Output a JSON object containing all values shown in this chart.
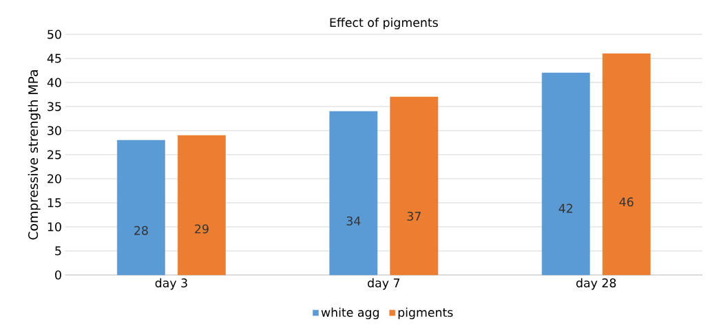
{
  "chart_data": {
    "type": "bar",
    "title": "Effect of pigments",
    "ylabel": "Compressive strength MPa",
    "categories": [
      "day 3",
      "day 7",
      "day 28"
    ],
    "series": [
      {
        "name": "white agg",
        "color": "#5b9bd5",
        "values": [
          28,
          34,
          42
        ]
      },
      {
        "name": "pigments",
        "color": "#ed7d31",
        "values": [
          29,
          37,
          46
        ]
      }
    ],
    "ylim": [
      0,
      50
    ],
    "yticks": [
      0,
      5,
      10,
      15,
      20,
      25,
      30,
      35,
      40,
      45,
      50
    ],
    "grid": "y",
    "legend": "bottom",
    "data_labels": true
  }
}
